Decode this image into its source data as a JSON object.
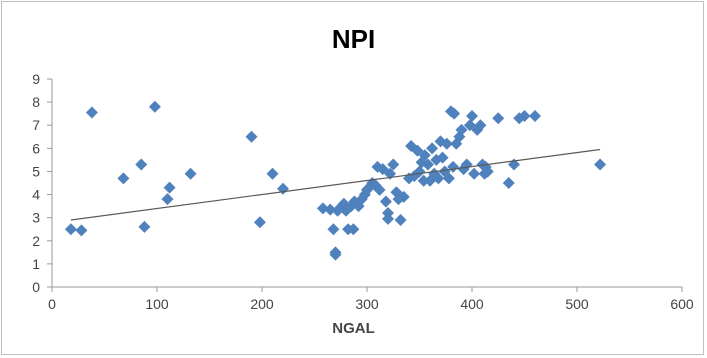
{
  "chart_data": {
    "type": "scatter",
    "title": "NPI",
    "xlabel": "NGAL",
    "ylabel": "",
    "xlim": [
      0,
      600
    ],
    "ylim": [
      0,
      9
    ],
    "xticks": [
      0,
      100,
      200,
      300,
      400,
      500,
      600
    ],
    "yticks": [
      0,
      1,
      2,
      3,
      4,
      5,
      6,
      7,
      8,
      9
    ],
    "grid": false,
    "legend": "none",
    "marker_color": "#4F81BD",
    "trendline_color": "#595959",
    "points": [
      [
        18,
        2.5
      ],
      [
        28,
        2.45
      ],
      [
        38,
        7.55
      ],
      [
        68,
        4.7
      ],
      [
        85,
        5.3
      ],
      [
        88,
        2.6
      ],
      [
        98,
        7.8
      ],
      [
        110,
        3.8
      ],
      [
        112,
        4.3
      ],
      [
        132,
        4.9
      ],
      [
        190,
        6.5
      ],
      [
        198,
        2.8
      ],
      [
        210,
        4.9
      ],
      [
        220,
        4.25
      ],
      [
        258,
        3.4
      ],
      [
        265,
        3.35
      ],
      [
        268,
        2.5
      ],
      [
        270,
        1.5
      ],
      [
        270,
        1.4
      ],
      [
        272,
        3.3
      ],
      [
        275,
        3.45
      ],
      [
        278,
        3.6
      ],
      [
        280,
        3.3
      ],
      [
        282,
        2.5
      ],
      [
        285,
        3.5
      ],
      [
        287,
        2.5
      ],
      [
        288,
        3.7
      ],
      [
        292,
        3.5
      ],
      [
        295,
        3.8
      ],
      [
        298,
        4.0
      ],
      [
        300,
        4.2
      ],
      [
        302,
        4.3
      ],
      [
        305,
        4.5
      ],
      [
        308,
        4.4
      ],
      [
        310,
        5.2
      ],
      [
        312,
        4.2
      ],
      [
        315,
        5.1
      ],
      [
        318,
        3.7
      ],
      [
        320,
        2.95
      ],
      [
        320,
        3.2
      ],
      [
        322,
        4.9
      ],
      [
        325,
        5.3
      ],
      [
        328,
        4.1
      ],
      [
        330,
        3.8
      ],
      [
        332,
        2.9
      ],
      [
        335,
        3.9
      ],
      [
        340,
        4.7
      ],
      [
        342,
        6.1
      ],
      [
        345,
        4.8
      ],
      [
        348,
        5.9
      ],
      [
        350,
        5.0
      ],
      [
        352,
        5.4
      ],
      [
        354,
        4.6
      ],
      [
        355,
        5.7
      ],
      [
        358,
        5.3
      ],
      [
        360,
        4.6
      ],
      [
        362,
        6.0
      ],
      [
        364,
        4.9
      ],
      [
        366,
        5.5
      ],
      [
        368,
        4.7
      ],
      [
        370,
        6.3
      ],
      [
        372,
        5.6
      ],
      [
        374,
        5.0
      ],
      [
        376,
        6.2
      ],
      [
        378,
        4.7
      ],
      [
        380,
        7.6
      ],
      [
        382,
        5.2
      ],
      [
        383,
        7.5
      ],
      [
        385,
        6.2
      ],
      [
        388,
        6.5
      ],
      [
        390,
        6.8
      ],
      [
        392,
        5.1
      ],
      [
        395,
        5.3
      ],
      [
        398,
        7.0
      ],
      [
        400,
        7.4
      ],
      [
        402,
        4.9
      ],
      [
        405,
        6.8
      ],
      [
        408,
        7.0
      ],
      [
        410,
        5.3
      ],
      [
        412,
        4.9
      ],
      [
        413,
        5.2
      ],
      [
        415,
        5.0
      ],
      [
        425,
        7.3
      ],
      [
        435,
        4.5
      ],
      [
        440,
        5.3
      ],
      [
        445,
        7.3
      ],
      [
        450,
        7.4
      ],
      [
        460,
        7.4
      ],
      [
        522,
        5.3
      ]
    ],
    "trendline": {
      "x": [
        18,
        522
      ],
      "y": [
        2.9,
        5.95
      ]
    }
  }
}
